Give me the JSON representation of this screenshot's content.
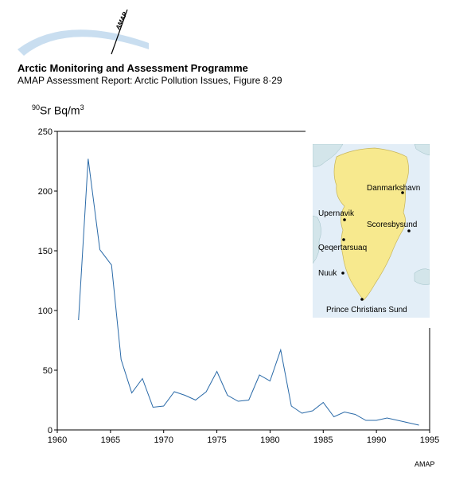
{
  "header": {
    "title": "Arctic Monitoring and Assessment Programme",
    "subtitle": "AMAP Assessment Report: Arctic Pollution Issues, Figure 8·29"
  },
  "logo": {
    "text": "AMAP"
  },
  "footer": {
    "credit": "AMAP"
  },
  "chart_data": {
    "type": "line",
    "title": "",
    "xlabel": "",
    "ylabel_prefix": "90",
    "ylabel_main": "Sr Bq/m",
    "ylabel_exp": "3",
    "xlim": [
      1960,
      1995
    ],
    "ylim": [
      0,
      250
    ],
    "x_ticks": [
      1960,
      1965,
      1970,
      1975,
      1980,
      1985,
      1990,
      1995
    ],
    "y_ticks": [
      0,
      50,
      100,
      150,
      200,
      250
    ],
    "grid": false,
    "series": [
      {
        "color": "#2a6aa8",
        "x": [
          1962,
          1962.9,
          1964,
          1965.1,
          1966,
          1967,
          1968,
          1969,
          1970,
          1971,
          1972,
          1973,
          1974,
          1975,
          1976,
          1977,
          1978,
          1979,
          1980,
          1981,
          1982,
          1983,
          1984,
          1985,
          1986,
          1987,
          1988,
          1989,
          1990,
          1991,
          1992,
          1993,
          1994
        ],
        "y": [
          92,
          227,
          151,
          138,
          59,
          31,
          43,
          19,
          20,
          32,
          29,
          25,
          32,
          49,
          29,
          24,
          25,
          46,
          41,
          67,
          20,
          14,
          16,
          23,
          11,
          15,
          13,
          8,
          8,
          10,
          8,
          6,
          4
        ]
      }
    ]
  },
  "inset_map": {
    "stations": [
      {
        "name": "Danmarkshavn"
      },
      {
        "name": "Upernavik"
      },
      {
        "name": "Scoresbysund"
      },
      {
        "name": "Qeqertarsuaq"
      },
      {
        "name": "Nuuk"
      },
      {
        "name": "Prince Christians Sund"
      }
    ]
  }
}
